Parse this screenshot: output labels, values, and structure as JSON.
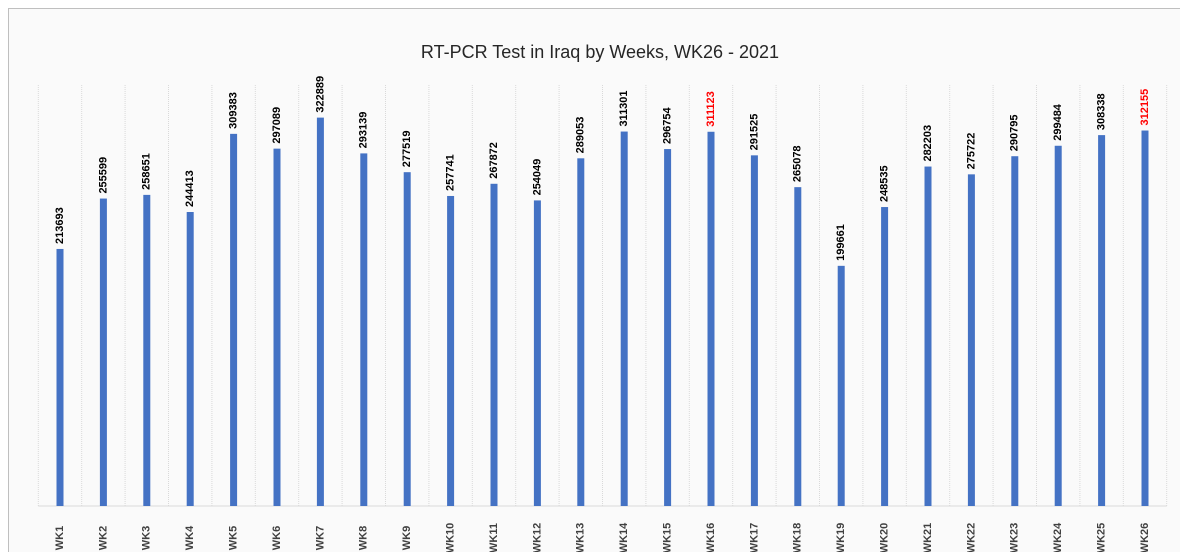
{
  "chart_data": {
    "type": "bar",
    "title": "RT-PCR Test in Iraq by Weeks, WK26 - 2021",
    "categories": [
      "WK1",
      "WK2",
      "WK3",
      "WK4",
      "WK5",
      "WK6",
      "WK7",
      "WK8",
      "WK9",
      "WK10",
      "WK11",
      "WK12",
      "WK13",
      "WK14",
      "WK15",
      "WK16",
      "WK17",
      "WK18",
      "WK19",
      "WK20",
      "WK21",
      "WK22",
      "WK23",
      "WK24",
      "WK25",
      "WK26"
    ],
    "values": [
      213693,
      255599,
      258651,
      244413,
      309383,
      297089,
      322889,
      293139,
      277519,
      257741,
      267872,
      254049,
      289053,
      311301,
      296754,
      311123,
      291525,
      265078,
      199661,
      248535,
      282203,
      275722,
      290795,
      299484,
      308338,
      312155
    ],
    "color": "#4472c4",
    "value_label_colors": [
      "#000000",
      "#000000",
      "#000000",
      "#000000",
      "#000000",
      "#000000",
      "#000000",
      "#000000",
      "#000000",
      "#000000",
      "#000000",
      "#000000",
      "#000000",
      "#000000",
      "#000000",
      "#ff0000",
      "#000000",
      "#000000",
      "#000000",
      "#000000",
      "#000000",
      "#000000",
      "#000000",
      "#000000",
      "#000000",
      "#ff0000"
    ],
    "ylim": [
      0,
      350000
    ],
    "grid": true
  }
}
